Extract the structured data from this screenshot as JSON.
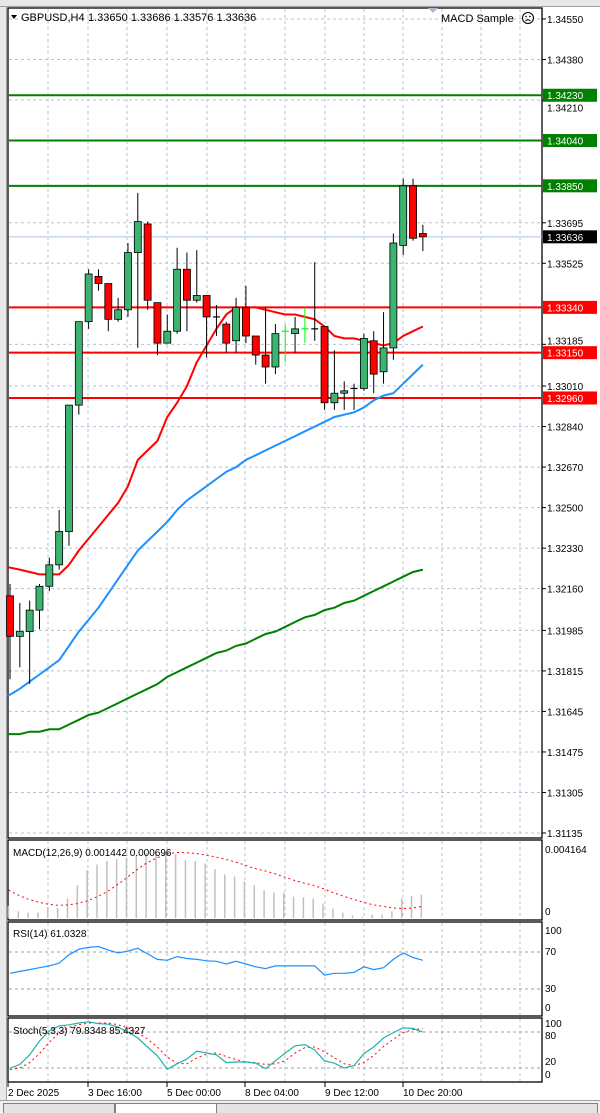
{
  "header": {
    "symbol": "GBPUSD,H4",
    "ohlc": "1.33650 1.33686 1.33576 1.33636",
    "expert": "MACD Sample",
    "expert_status_icon": "sad-face-icon"
  },
  "colors": {
    "bull": "#3cb371",
    "bear": "#ff0000",
    "doji_bull": "#00ff00",
    "ma_fast": "#ff0000",
    "ma_mid": "#1e90ff",
    "ma_slow": "#008000",
    "support": "#ff0000",
    "resistance": "#008000",
    "grid": "#b0c4de",
    "macd_hist": "#c0c0c0",
    "macd_signal": "#ff0000",
    "rsi": "#1e90ff",
    "stoch_main": "#20b2aa",
    "stoch_signal": "#ff0000"
  },
  "chart_data": {
    "type": "candlestick",
    "symbol": "GBPUSD",
    "timeframe": "H4",
    "ylim": [
      1.31114,
      1.34596
    ],
    "grid": true,
    "price_ticks": [
      "1.34550",
      "1.34380",
      "1.34210",
      "1.33695",
      "1.33525",
      "1.33185",
      "1.33010",
      "1.32840",
      "1.32670",
      "1.32500",
      "1.32330",
      "1.32160",
      "1.31985",
      "1.31815",
      "1.31645",
      "1.31475",
      "1.31305",
      "1.31135"
    ],
    "x_labels": [
      "2 Dec 2025",
      "3 Dec 16:00",
      "5 Dec 00:00",
      "8 Dec 04:00",
      "9 Dec 12:00",
      "10 Dec 20:00"
    ],
    "current_price": "1.33636",
    "levels": [
      {
        "price": "1.34230",
        "kind": "resistance"
      },
      {
        "price": "1.34040",
        "kind": "resistance"
      },
      {
        "price": "1.33850",
        "kind": "resistance"
      },
      {
        "price": "1.33340",
        "kind": "support"
      },
      {
        "price": "1.33150",
        "kind": "support"
      },
      {
        "price": "1.32960",
        "kind": "support"
      }
    ],
    "candles": [
      [
        1.3213,
        1.3218,
        1.3178,
        1.3196
      ],
      [
        1.3196,
        1.321,
        1.3183,
        1.3198
      ],
      [
        1.3198,
        1.3211,
        1.3176,
        1.3207
      ],
      [
        1.3207,
        1.3218,
        1.3199,
        1.3217
      ],
      [
        1.3217,
        1.3229,
        1.3215,
        1.3226
      ],
      [
        1.3226,
        1.3249,
        1.3224,
        1.324
      ],
      [
        1.324,
        1.3293,
        1.3234,
        1.3293
      ],
      [
        1.3293,
        1.3328,
        1.3289,
        1.3328
      ],
      [
        1.3328,
        1.335,
        1.3325,
        1.3348
      ],
      [
        1.3347,
        1.335,
        1.3341,
        1.3344
      ],
      [
        1.3344,
        1.3344,
        1.3324,
        1.3329
      ],
      [
        1.3329,
        1.3338,
        1.3328,
        1.3333
      ],
      [
        1.3333,
        1.3361,
        1.333,
        1.3357
      ],
      [
        1.3357,
        1.3382,
        1.3317,
        1.337
      ],
      [
        1.3369,
        1.337,
        1.3333,
        1.3337
      ],
      [
        1.3336,
        1.3336,
        1.3314,
        1.3319
      ],
      [
        1.3319,
        1.3331,
        1.3319,
        1.3324
      ],
      [
        1.3324,
        1.3359,
        1.3323,
        1.335
      ],
      [
        1.335,
        1.3357,
        1.3324,
        1.3337
      ],
      [
        1.3337,
        1.3358,
        1.3336,
        1.3339
      ],
      [
        1.3339,
        1.3339,
        1.3313,
        1.333
      ],
      [
        1.333,
        1.3335,
        1.3322,
        1.333
      ],
      [
        1.3327,
        1.3328,
        1.3315,
        1.3319
      ],
      [
        1.332,
        1.3338,
        1.3315,
        1.3334
      ],
      [
        1.3334,
        1.3343,
        1.3319,
        1.3322
      ],
      [
        1.3322,
        1.3322,
        1.331,
        1.3314
      ],
      [
        1.3314,
        1.3334,
        1.3302,
        1.3309
      ],
      [
        1.3309,
        1.3327,
        1.3306,
        1.3323
      ],
      [
        1.3324,
        1.3327,
        1.3311,
        1.3324
      ],
      [
        1.3323,
        1.333,
        1.3315,
        1.3325
      ],
      [
        1.3325,
        1.3334,
        1.3319,
        1.3325
      ],
      [
        1.3325,
        1.3353,
        1.332,
        1.3325
      ],
      [
        1.3326,
        1.3326,
        1.3291,
        1.3294
      ],
      [
        1.3294,
        1.3316,
        1.3291,
        1.3298
      ],
      [
        1.3298,
        1.3303,
        1.3291,
        1.3299
      ],
      [
        1.33,
        1.3302,
        1.3291,
        1.33
      ],
      [
        1.33,
        1.3323,
        1.3299,
        1.3321
      ],
      [
        1.332,
        1.3324,
        1.3298,
        1.3306
      ],
      [
        1.3307,
        1.3332,
        1.3302,
        1.3317
      ],
      [
        1.3317,
        1.3365,
        1.3312,
        1.3361
      ],
      [
        1.336,
        1.3388,
        1.3356,
        1.3385
      ],
      [
        1.3385,
        1.3388,
        1.3362,
        1.3363
      ],
      [
        1.3365,
        1.33686,
        1.33576,
        1.33636
      ]
    ],
    "ma_fast": [
      1.3225,
      1.3224,
      1.3223,
      1.3222,
      1.3222,
      1.3222,
      1.3226,
      1.3232,
      1.3237,
      1.3242,
      1.3247,
      1.3252,
      1.3259,
      1.327,
      1.3274,
      1.3278,
      1.3288,
      1.3294,
      1.3301,
      1.3311,
      1.3318,
      1.3325,
      1.3331,
      1.3334,
      1.3334,
      1.3334,
      1.3333,
      1.3332,
      1.3331,
      1.3331,
      1.333,
      1.3329,
      1.3326,
      1.3322,
      1.3321,
      1.3321,
      1.332,
      1.3319,
      1.3318,
      1.3319,
      1.3322,
      1.3324,
      1.3326
    ],
    "ma_mid": [
      1.3171,
      1.3174,
      1.3177,
      1.318,
      1.3183,
      1.3186,
      1.3192,
      1.3198,
      1.3203,
      1.3208,
      1.3214,
      1.322,
      1.3226,
      1.3232,
      1.3236,
      1.324,
      1.3244,
      1.3249,
      1.3253,
      1.3256,
      1.3259,
      1.3262,
      1.3265,
      1.3267,
      1.327,
      1.3272,
      1.3274,
      1.3276,
      1.3278,
      1.328,
      1.3282,
      1.3284,
      1.3286,
      1.3288,
      1.3289,
      1.329,
      1.3292,
      1.3295,
      1.3297,
      1.3298,
      1.3302,
      1.3306,
      1.331
    ],
    "ma_slow": [
      1.3155,
      1.3155,
      1.3156,
      1.3156,
      1.3157,
      1.3157,
      1.3159,
      1.3161,
      1.3163,
      1.3164,
      1.3166,
      1.3168,
      1.317,
      1.3172,
      1.3174,
      1.3176,
      1.3179,
      1.3181,
      1.3183,
      1.3185,
      1.3187,
      1.3189,
      1.319,
      1.3192,
      1.3193,
      1.3195,
      1.3197,
      1.3198,
      1.32,
      1.3202,
      1.3204,
      1.3205,
      1.3207,
      1.3208,
      1.321,
      1.3211,
      1.3213,
      1.3215,
      1.3217,
      1.3219,
      1.3221,
      1.3223,
      1.3224
    ],
    "macd": {
      "label": "MACD(12,26,9) 0.001442 0.000696",
      "top_label": "0.004164",
      "zero_label": "0",
      "ylim": [
        0,
        0.004164
      ],
      "histogram": [
        0.00074,
        0.00041,
        0.00033,
        0.00033,
        0.00068,
        0.00062,
        0.00119,
        0.00201,
        0.00293,
        0.00328,
        0.00349,
        0.00361,
        0.00369,
        0.00386,
        0.00396,
        0.00402,
        0.00402,
        0.0039,
        0.00355,
        0.00349,
        0.00334,
        0.00299,
        0.00267,
        0.00254,
        0.00226,
        0.00201,
        0.0017,
        0.00156,
        0.00156,
        0.00131,
        0.00127,
        0.00119,
        0.00088,
        0.00057,
        0.00033,
        0.00016,
        6e-05,
        0.00021,
        0.00021,
        0.00041,
        0.00119,
        0.00135,
        0.00144
      ],
      "signal": [
        0.0017,
        0.0014,
        0.00115,
        0.00098,
        0.00085,
        0.00078,
        0.0008,
        0.00088,
        0.00105,
        0.00129,
        0.0016,
        0.00201,
        0.00245,
        0.00293,
        0.00335,
        0.00365,
        0.0039,
        0.00402,
        0.004,
        0.00396,
        0.00386,
        0.00375,
        0.0036,
        0.00345,
        0.00325,
        0.00304,
        0.0029,
        0.00273,
        0.00252,
        0.00232,
        0.00215,
        0.00201,
        0.0018,
        0.00156,
        0.00135,
        0.00115,
        0.00098,
        0.00082,
        0.00072,
        0.00062,
        0.00058,
        0.0006,
        0.0007
      ]
    },
    "rsi": {
      "label": "RSI(14) 61.0328",
      "levels": [
        "100",
        "70",
        "30",
        "0"
      ],
      "values": [
        47,
        49,
        51,
        53,
        55,
        58,
        67,
        73,
        75,
        76,
        72,
        69,
        71,
        74,
        68,
        62,
        61,
        65,
        63,
        62,
        60.5,
        60,
        57,
        60,
        57,
        54,
        52,
        55,
        55,
        55,
        55,
        55,
        45,
        47,
        47,
        48,
        54,
        51,
        53,
        62,
        69,
        64,
        61.03
      ]
    },
    "stoch": {
      "label": "Stoch(5,3,3) 79.8348 85.4327",
      "levels": [
        "100",
        "80",
        "20",
        "0"
      ],
      "main": [
        19.5,
        26,
        42,
        65,
        82,
        90,
        92,
        95,
        97,
        94,
        93,
        88,
        80,
        70,
        55,
        40,
        18,
        27,
        35,
        48,
        45,
        42,
        29,
        30,
        30,
        28,
        19,
        32,
        45,
        57,
        59,
        50,
        32,
        28,
        20,
        24,
        44,
        55,
        70,
        79,
        87,
        86,
        79.83
      ],
      "signal": [
        17,
        20,
        29,
        44,
        63,
        79,
        88,
        92,
        95,
        95,
        95,
        92,
        87,
        79,
        68,
        55,
        38,
        28,
        27,
        37,
        43,
        45,
        39,
        34,
        30,
        29,
        26,
        27,
        32,
        45,
        54,
        55,
        47,
        37,
        27,
        24,
        29,
        41,
        56,
        68,
        79,
        84,
        85.43
      ]
    }
  }
}
